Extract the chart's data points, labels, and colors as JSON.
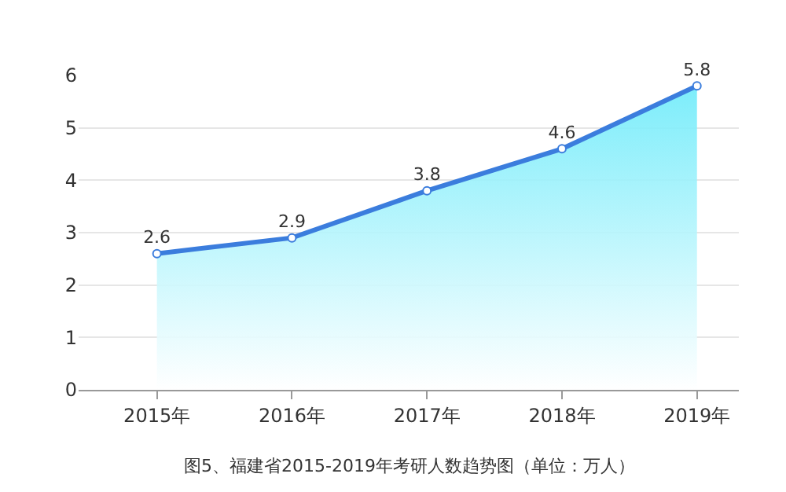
{
  "chart_data": {
    "type": "area",
    "categories": [
      "2015年",
      "2016年",
      "2017年",
      "2018年",
      "2019年"
    ],
    "series": [
      {
        "color": "#3b7ddd",
        "values": [
          2.6,
          2.9,
          3.8,
          4.6,
          5.8
        ]
      }
    ],
    "ylim": [
      0,
      6
    ],
    "yticks": [
      0,
      1,
      2,
      3,
      4,
      5,
      6
    ],
    "grid": "y",
    "marker": "circle",
    "data_labels": true,
    "legend": false,
    "annotations": [
      "图5、福建省2015-2019年考研人数趋势图（单位：万人）"
    ]
  }
}
